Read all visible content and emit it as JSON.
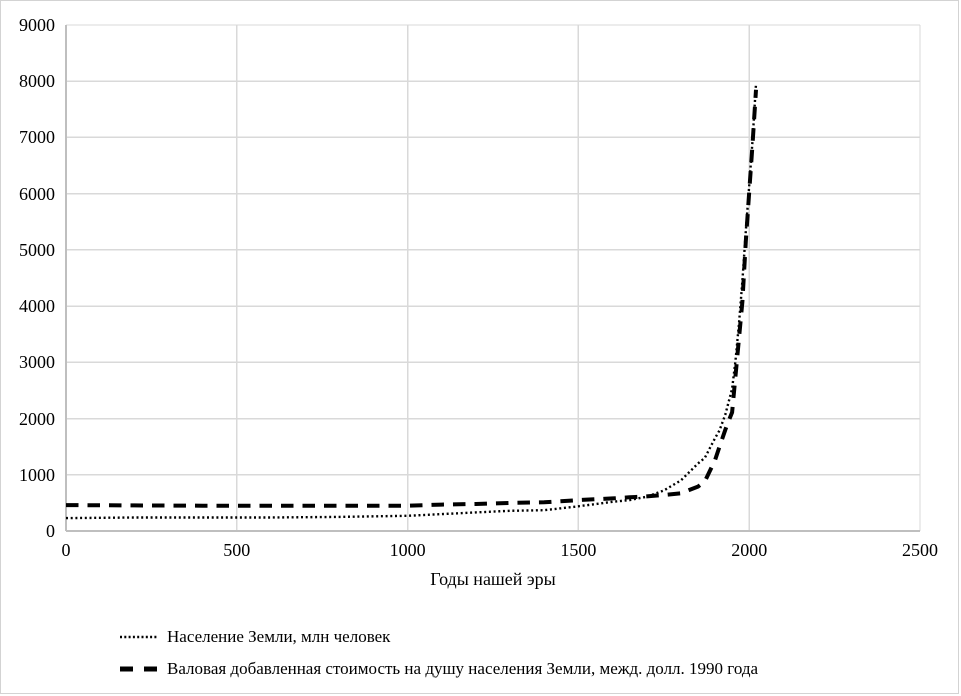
{
  "colors": {
    "background": "#ffffff",
    "figure_border": "#d3d3d3",
    "gridline": "#d9d9d9",
    "axis_line": "#bfbfbf",
    "series_color": "#000000",
    "text": "#000000"
  },
  "chart_data": {
    "type": "line",
    "title": "",
    "xlabel": "Годы нашей эры",
    "ylabel": "",
    "xlim": [
      0,
      2500
    ],
    "ylim": [
      0,
      9000
    ],
    "x_ticks": [
      0,
      500,
      1000,
      1500,
      2000,
      2500
    ],
    "y_ticks": [
      0,
      1000,
      2000,
      3000,
      4000,
      5000,
      6000,
      7000,
      8000,
      9000
    ],
    "grid": true,
    "legend_position": "bottom-left",
    "x": [
      0,
      200,
      400,
      600,
      800,
      1000,
      1100,
      1200,
      1300,
      1400,
      1500,
      1600,
      1650,
      1700,
      1750,
      1800,
      1850,
      1870,
      1900,
      1913,
      1930,
      1940,
      1950,
      1960,
      1970,
      1980,
      1990,
      2000,
      2010,
      2020
    ],
    "series": [
      {
        "name": "Население Земли, млн человек",
        "line_style": "dotted",
        "color": "#000000",
        "values": [
          230,
          240,
          240,
          240,
          250,
          270,
          300,
          330,
          360,
          370,
          440,
          520,
          550,
          610,
          720,
          900,
          1200,
          1300,
          1650,
          1790,
          2070,
          2300,
          2530,
          3030,
          3690,
          4450,
          5330,
          6140,
          6960,
          7950
        ]
      },
      {
        "name": "Валовая добавленная стоимость на душу населения Земли, межд. долл. 1990 года",
        "line_style": "dashed",
        "color": "#000000",
        "values": [
          460,
          455,
          450,
          450,
          450,
          450,
          470,
          480,
          500,
          510,
          550,
          580,
          600,
          615,
          640,
          670,
          790,
          880,
          1260,
          1500,
          1800,
          1960,
          2110,
          2760,
          3430,
          4080,
          5150,
          6030,
          6900,
          7850
        ]
      }
    ]
  }
}
